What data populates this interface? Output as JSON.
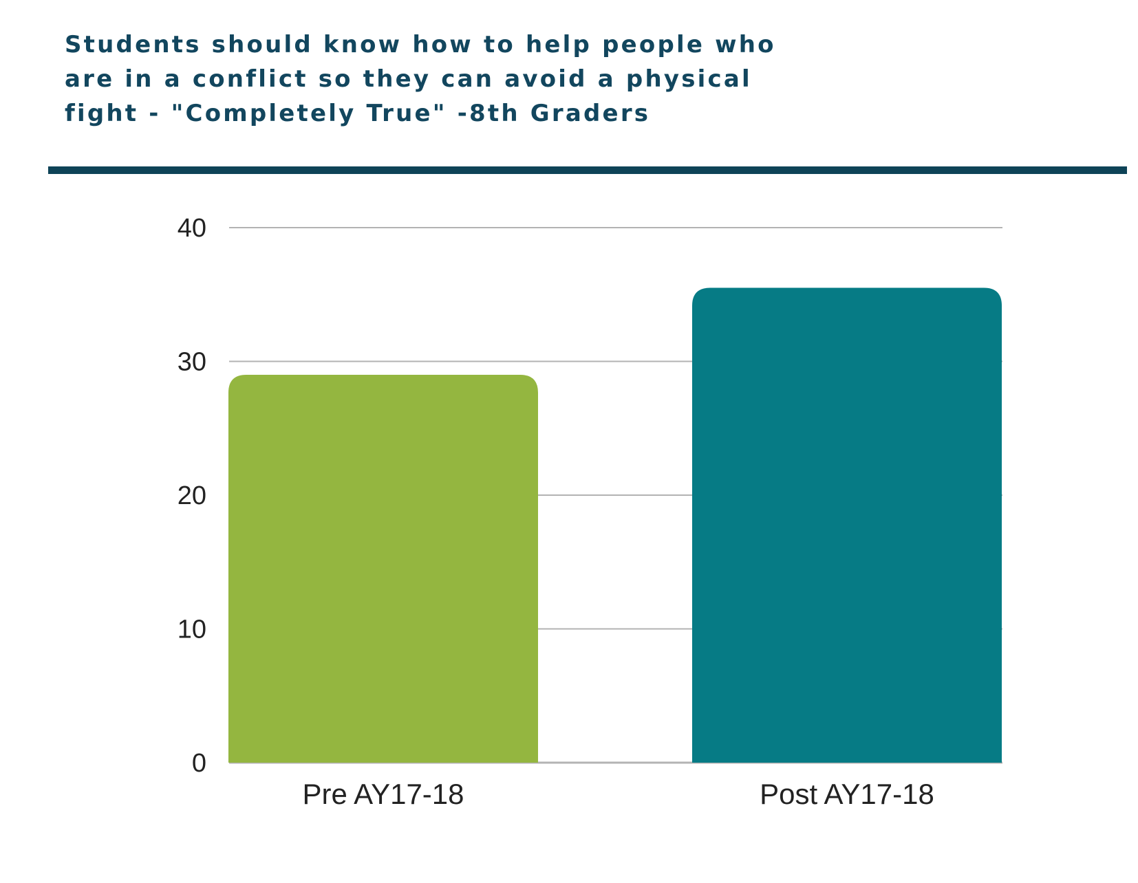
{
  "title_lines": [
    "Students should know how to help people who",
    "are in a conflict so they can avoid a physical",
    "fight - \"Completely True\" -8th Graders"
  ],
  "colors": {
    "title": "#12465e",
    "rule": "#0e4357",
    "grid": "#b3b3b3",
    "pre_bar": "#94b640",
    "post_bar": "#067b85"
  },
  "chart_data": {
    "type": "bar",
    "title": "Students should know how to help people who are in a conflict so they can avoid a physical fight - \"Completely True\" -8th Graders",
    "categories": [
      "Pre AY17-18",
      "Post AY17-18"
    ],
    "values": [
      29,
      35.5
    ],
    "bar_colors": [
      "#94b640",
      "#067b85"
    ],
    "yticks": [
      0,
      10,
      20,
      30,
      40
    ],
    "ylim": [
      0,
      40
    ],
    "xlabel": "",
    "ylabel": "",
    "grid": true,
    "legend": "none"
  }
}
